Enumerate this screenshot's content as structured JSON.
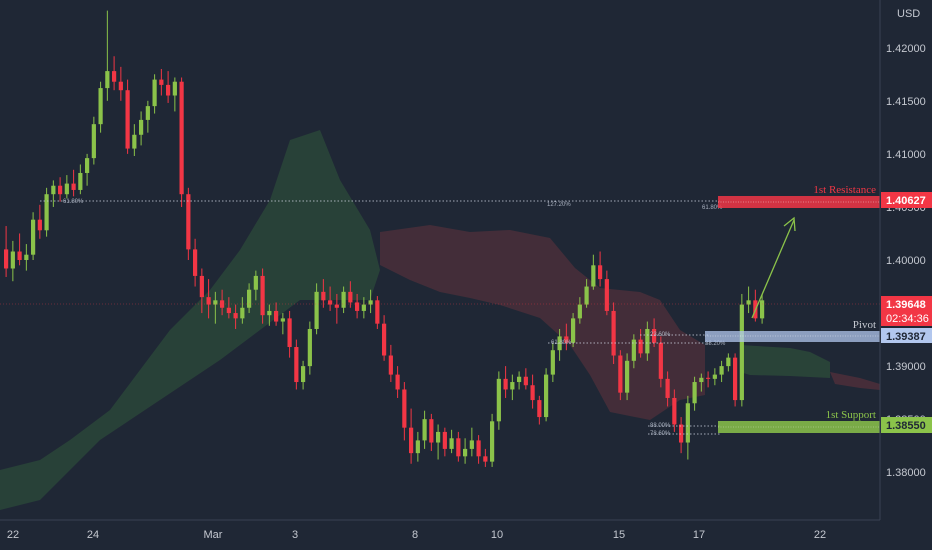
{
  "chart_data": {
    "type": "candlestick",
    "currency_label": "USD",
    "y_ticks": [
      1.42,
      1.415,
      1.41,
      1.405,
      1.4,
      1.395,
      1.39,
      1.385,
      1.38
    ],
    "y_tick_labels": [
      "1.42000",
      "1.41500",
      "1.41000",
      "1.40500",
      "1.40000",
      "1.39500",
      "1.39000",
      "1.38500",
      "1.38000"
    ],
    "ylim": [
      1.3755,
      1.4245
    ],
    "x_tick_labels": [
      "22",
      "24",
      "Mar",
      "3",
      "8",
      "10",
      "15",
      "17",
      "22"
    ],
    "levels": {
      "resistance": {
        "label": "1st Resistance",
        "value": 1.40627,
        "value_label": "1.40627",
        "color": "#f23645"
      },
      "pivot": {
        "label": "Pivot",
        "value": 1.39387,
        "value_label": "1.39387",
        "color": "#b2c7ee"
      },
      "support": {
        "label": "1st Support",
        "value": 1.3855,
        "value_label": "1.38550",
        "color": "#8bc34a"
      }
    },
    "current_price": {
      "value": 1.39648,
      "value_label": "1.39648",
      "countdown": "02:34:36",
      "color": "#f23645"
    },
    "fib_labels": {
      "left_618": "61.80%",
      "ext_1272": "127.20%",
      "ext_618": "61.80%",
      "r_236": "23.60%",
      "r_382": "38.20%",
      "r_618b": "61.80%",
      "r_886": "88.00%",
      "r_786": "78.60%"
    },
    "colors": {
      "bull": "#8bc34a",
      "bear": "#f23645",
      "background": "#1f2735",
      "cloud_bull": "#2c4b3a",
      "cloud_bear": "#4a2f3a"
    },
    "candles": [
      [
        1.401,
        1.4032,
        1.3984,
        1.3992
      ],
      [
        1.3992,
        1.4018,
        1.398,
        1.4008
      ],
      [
        1.4008,
        1.4025,
        1.3995,
        1.4
      ],
      [
        1.4,
        1.4015,
        1.399,
        1.4005
      ],
      [
        1.4005,
        1.4045,
        1.4,
        1.4038
      ],
      [
        1.4038,
        1.4052,
        1.402,
        1.4028
      ],
      [
        1.4028,
        1.4068,
        1.4022,
        1.4062
      ],
      [
        1.4062,
        1.4075,
        1.405,
        1.407
      ],
      [
        1.407,
        1.4078,
        1.4055,
        1.4062
      ],
      [
        1.4062,
        1.408,
        1.4058,
        1.4072
      ],
      [
        1.4072,
        1.4085,
        1.406,
        1.4066
      ],
      [
        1.4066,
        1.409,
        1.4062,
        1.4082
      ],
      [
        1.4082,
        1.41,
        1.407,
        1.4096
      ],
      [
        1.4096,
        1.4135,
        1.409,
        1.4128
      ],
      [
        1.4128,
        1.4168,
        1.412,
        1.4162
      ],
      [
        1.4162,
        1.4235,
        1.415,
        1.4178
      ],
      [
        1.4178,
        1.4192,
        1.416,
        1.4168
      ],
      [
        1.4168,
        1.4182,
        1.415,
        1.416
      ],
      [
        1.416,
        1.417,
        1.41,
        1.4105
      ],
      [
        1.4105,
        1.4128,
        1.4098,
        1.4118
      ],
      [
        1.4118,
        1.414,
        1.4108,
        1.4132
      ],
      [
        1.4132,
        1.415,
        1.412,
        1.4145
      ],
      [
        1.4145,
        1.4175,
        1.4138,
        1.417
      ],
      [
        1.417,
        1.418,
        1.4155,
        1.4165
      ],
      [
        1.4165,
        1.4178,
        1.4148,
        1.4155
      ],
      [
        1.4155,
        1.4172,
        1.414,
        1.4168
      ],
      [
        1.4168,
        1.4172,
        1.405,
        1.4062
      ],
      [
        1.4062,
        1.4068,
        1.4,
        1.401
      ],
      [
        1.401,
        1.402,
        1.3975,
        1.3985
      ],
      [
        1.3985,
        1.3992,
        1.395,
        1.3965
      ],
      [
        1.3965,
        1.3982,
        1.3945,
        1.3958
      ],
      [
        1.3958,
        1.397,
        1.394,
        1.3962
      ],
      [
        1.3962,
        1.3972,
        1.3948,
        1.3955
      ],
      [
        1.3955,
        1.3965,
        1.3945,
        1.395
      ],
      [
        1.395,
        1.3958,
        1.3935,
        1.3945
      ],
      [
        1.3945,
        1.3965,
        1.394,
        1.3955
      ],
      [
        1.3955,
        1.3978,
        1.395,
        1.3972
      ],
      [
        1.3972,
        1.399,
        1.3962,
        1.3985
      ],
      [
        1.3985,
        1.3992,
        1.394,
        1.3948
      ],
      [
        1.3948,
        1.3958,
        1.3938,
        1.3952
      ],
      [
        1.3952,
        1.396,
        1.3938,
        1.3942
      ],
      [
        1.3942,
        1.395,
        1.393,
        1.3945
      ],
      [
        1.3945,
        1.3952,
        1.3908,
        1.3918
      ],
      [
        1.3918,
        1.3925,
        1.3878,
        1.3885
      ],
      [
        1.3885,
        1.3905,
        1.3878,
        1.39
      ],
      [
        1.39,
        1.3942,
        1.3892,
        1.3935
      ],
      [
        1.3935,
        1.3978,
        1.393,
        1.397
      ],
      [
        1.397,
        1.3982,
        1.3955,
        1.3962
      ],
      [
        1.3962,
        1.3975,
        1.3952,
        1.3958
      ],
      [
        1.3958,
        1.3968,
        1.394,
        1.3955
      ],
      [
        1.3955,
        1.3975,
        1.395,
        1.397
      ],
      [
        1.397,
        1.398,
        1.3955,
        1.396
      ],
      [
        1.396,
        1.3968,
        1.3945,
        1.3952
      ],
      [
        1.3952,
        1.3965,
        1.3945,
        1.3958
      ],
      [
        1.3958,
        1.3972,
        1.395,
        1.3962
      ],
      [
        1.3962,
        1.3966,
        1.3935,
        1.394
      ],
      [
        1.394,
        1.3948,
        1.3905,
        1.391
      ],
      [
        1.391,
        1.392,
        1.3885,
        1.3892
      ],
      [
        1.3892,
        1.39,
        1.387,
        1.3878
      ],
      [
        1.3878,
        1.3885,
        1.383,
        1.3842
      ],
      [
        1.3842,
        1.386,
        1.3808,
        1.3818
      ],
      [
        1.3818,
        1.3838,
        1.381,
        1.383
      ],
      [
        1.383,
        1.3858,
        1.3822,
        1.385
      ],
      [
        1.385,
        1.3855,
        1.382,
        1.3828
      ],
      [
        1.3828,
        1.3845,
        1.3812,
        1.3838
      ],
      [
        1.3838,
        1.3842,
        1.3815,
        1.3822
      ],
      [
        1.3822,
        1.384,
        1.3818,
        1.3832
      ],
      [
        1.3832,
        1.3838,
        1.381,
        1.3815
      ],
      [
        1.3815,
        1.3832,
        1.3808,
        1.3822
      ],
      [
        1.3822,
        1.3842,
        1.3815,
        1.383
      ],
      [
        1.383,
        1.3835,
        1.3808,
        1.3815
      ],
      [
        1.3815,
        1.3822,
        1.3805,
        1.381
      ],
      [
        1.381,
        1.3855,
        1.3805,
        1.3848
      ],
      [
        1.3848,
        1.3895,
        1.384,
        1.3888
      ],
      [
        1.3888,
        1.39,
        1.387,
        1.3878
      ],
      [
        1.3878,
        1.3892,
        1.3868,
        1.3885
      ],
      [
        1.3885,
        1.3895,
        1.3878,
        1.389
      ],
      [
        1.389,
        1.3898,
        1.3878,
        1.3882
      ],
      [
        1.3882,
        1.3892,
        1.386,
        1.3868
      ],
      [
        1.3868,
        1.3872,
        1.3845,
        1.3852
      ],
      [
        1.3852,
        1.3898,
        1.3848,
        1.3892
      ],
      [
        1.3892,
        1.3922,
        1.3885,
        1.3915
      ],
      [
        1.3915,
        1.3935,
        1.3905,
        1.3928
      ],
      [
        1.3928,
        1.394,
        1.3915,
        1.3922
      ],
      [
        1.3922,
        1.395,
        1.3918,
        1.3945
      ],
      [
        1.3945,
        1.3965,
        1.394,
        1.3958
      ],
      [
        1.3958,
        1.3982,
        1.3955,
        1.3975
      ],
      [
        1.3975,
        1.4005,
        1.3972,
        1.3995
      ],
      [
        1.3995,
        1.4008,
        1.3975,
        1.3982
      ],
      [
        1.3982,
        1.399,
        1.3948,
        1.3952
      ],
      [
        1.3952,
        1.396,
        1.3902,
        1.391
      ],
      [
        1.391,
        1.3915,
        1.3868,
        1.3875
      ],
      [
        1.3875,
        1.3912,
        1.3868,
        1.3905
      ],
      [
        1.3905,
        1.393,
        1.3898,
        1.3925
      ],
      [
        1.3925,
        1.3935,
        1.3908,
        1.3912
      ],
      [
        1.3912,
        1.3942,
        1.3905,
        1.3935
      ],
      [
        1.3935,
        1.3945,
        1.3918,
        1.3922
      ],
      [
        1.3922,
        1.3928,
        1.388,
        1.3888
      ],
      [
        1.3888,
        1.3895,
        1.3862,
        1.387
      ],
      [
        1.387,
        1.3878,
        1.3838,
        1.3845
      ],
      [
        1.3845,
        1.3852,
        1.3818,
        1.3828
      ],
      [
        1.3828,
        1.3872,
        1.3812,
        1.3865
      ],
      [
        1.3865,
        1.389,
        1.3858,
        1.3885
      ],
      [
        1.3885,
        1.3893,
        1.3876,
        1.3889
      ],
      [
        1.3889,
        1.3895,
        1.388,
        1.3888
      ],
      [
        1.3888,
        1.3898,
        1.3882,
        1.3892
      ],
      [
        1.3892,
        1.3905,
        1.3885,
        1.39
      ],
      [
        1.39,
        1.3912,
        1.3895,
        1.3908
      ],
      [
        1.3908,
        1.3912,
        1.3862,
        1.3868
      ],
      [
        1.3868,
        1.3968,
        1.3862,
        1.3958
      ],
      [
        1.3958,
        1.3975,
        1.395,
        1.3962
      ],
      [
        1.3962,
        1.3972,
        1.3942,
        1.3945
      ],
      [
        1.3945,
        1.3968,
        1.394,
        1.3962
      ]
    ]
  }
}
